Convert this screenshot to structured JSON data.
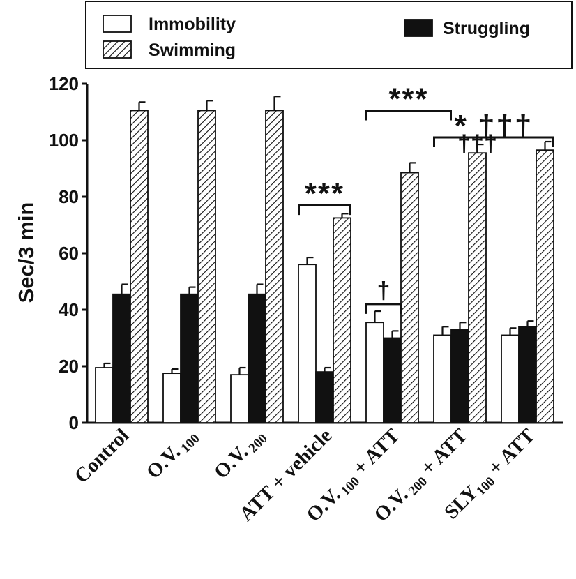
{
  "chart_data": {
    "type": "bar",
    "ylabel": "Sec/3 min",
    "ylim": [
      0,
      120
    ],
    "yticks": [
      0,
      20,
      40,
      60,
      80,
      100,
      120
    ],
    "categories": [
      {
        "main": "Control",
        "sub": "",
        "tail": ""
      },
      {
        "main": "O.V.",
        "sub": "100",
        "tail": ""
      },
      {
        "main": "O.V.",
        "sub": "200",
        "tail": ""
      },
      {
        "main": "ATT + vehicle",
        "sub": "",
        "tail": ""
      },
      {
        "main": "O.V.",
        "sub": "100",
        "tail": " + ATT"
      },
      {
        "main": "O.V.",
        "sub": "200",
        "tail": " + ATT"
      },
      {
        "main": "SLY",
        "sub": "100",
        "tail": " + ATT"
      }
    ],
    "series": [
      {
        "name": "Immobility",
        "pattern": "white",
        "values": [
          19.5,
          17.5,
          17,
          56,
          35.5,
          31,
          31
        ],
        "errors": [
          1.5,
          1.5,
          2.5,
          2.5,
          4,
          3,
          2.5
        ]
      },
      {
        "name": "Struggling",
        "pattern": "black",
        "values": [
          45.5,
          45.5,
          45.5,
          18,
          30,
          33,
          34
        ],
        "errors": [
          3.5,
          2.5,
          3.5,
          1.5,
          2.5,
          2.5,
          2
        ]
      },
      {
        "name": "Swimming",
        "pattern": "hatched",
        "values": [
          110.5,
          110.5,
          110.5,
          72.5,
          88.5,
          95.5,
          96.5
        ],
        "errors": [
          3,
          3.5,
          5,
          1.5,
          3.5,
          3,
          3
        ]
      }
    ],
    "legend": {
      "position": "top",
      "entries": [
        "Immobility",
        "Swimming",
        "Struggling"
      ]
    },
    "annotations": [
      {
        "text": "***",
        "from_group": 3,
        "from_series": 0,
        "to_group": 3,
        "to_series": 2,
        "value": 77
      },
      {
        "text": "†",
        "from_group": 4,
        "from_series": 0,
        "to_group": 4,
        "to_series": 1,
        "value": 42
      },
      {
        "text": "***",
        "from_group": 4,
        "from_series": 0,
        "to_group": 5,
        "to_series": 0,
        "value": 110.5
      },
      {
        "text": "†††",
        "from_group": 5,
        "from_series": 2,
        "to_group": 5,
        "to_series": 2,
        "value": 94
      },
      {
        "text": "* †††",
        "from_group": 5,
        "from_series": 0,
        "to_group": 6,
        "to_series": 2,
        "value": 101
      }
    ]
  }
}
